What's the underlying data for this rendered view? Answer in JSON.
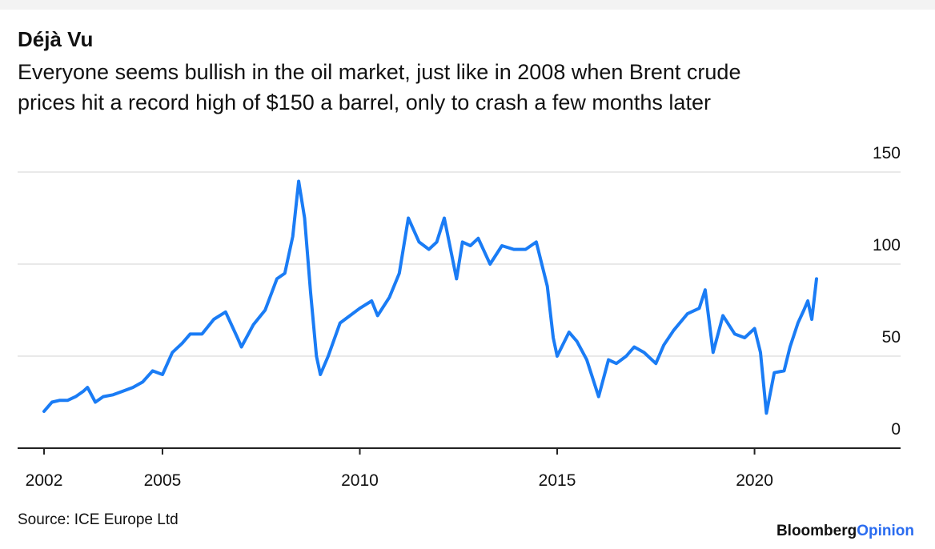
{
  "chart_data": {
    "type": "line",
    "title": "Déjà Vu",
    "subtitle": [
      "Everyone seems bullish in the oil market, just like in 2008 when Brent crude",
      "prices hit a record high of $150 a barrel, only to crash a few months later"
    ],
    "source": "Source: ICE Europe Ltd",
    "brand": [
      "Bloomberg",
      "Opinion"
    ],
    "x": [
      2002.0,
      2002.2,
      2002.4,
      2002.6,
      2002.8,
      2003.0,
      2003.1,
      2003.3,
      2003.5,
      2003.75,
      2004.0,
      2004.25,
      2004.5,
      2004.75,
      2005.0,
      2005.25,
      2005.5,
      2005.7,
      2006.0,
      2006.3,
      2006.6,
      2006.9,
      2007.0,
      2007.3,
      2007.6,
      2007.9,
      2008.1,
      2008.3,
      2008.45,
      2008.6,
      2008.75,
      2008.9,
      2009.0,
      2009.2,
      2009.5,
      2009.75,
      2010.0,
      2010.3,
      2010.45,
      2010.75,
      2011.0,
      2011.23,
      2011.5,
      2011.75,
      2011.95,
      2012.14,
      2012.45,
      2012.6,
      2012.8,
      2013.0,
      2013.3,
      2013.6,
      2013.9,
      2014.2,
      2014.47,
      2014.75,
      2014.9,
      2015.0,
      2015.3,
      2015.5,
      2015.75,
      2016.05,
      2016.3,
      2016.5,
      2016.75,
      2016.95,
      2017.2,
      2017.5,
      2017.7,
      2017.95,
      2018.3,
      2018.6,
      2018.75,
      2018.95,
      2019.2,
      2019.5,
      2019.75,
      2020.0,
      2020.15,
      2020.3,
      2020.5,
      2020.75,
      2020.9,
      2021.1,
      2021.25,
      2021.35,
      2021.45,
      2021.57
    ],
    "series": [
      {
        "name": "Brent crude",
        "color": "#1a7cf5",
        "values": [
          20,
          25,
          26,
          26,
          28,
          31,
          33,
          25,
          28,
          29,
          31,
          33,
          36,
          42,
          40,
          52,
          57,
          62,
          62,
          70,
          74,
          60,
          55,
          67,
          75,
          92,
          95,
          115,
          145,
          125,
          85,
          50,
          40,
          50,
          68,
          72,
          76,
          80,
          72,
          82,
          95,
          125,
          112,
          108,
          112,
          125,
          92,
          112,
          110,
          114,
          100,
          110,
          108,
          108,
          112,
          88,
          60,
          50,
          63,
          58,
          48,
          28,
          48,
          46,
          50,
          55,
          52,
          46,
          56,
          64,
          73,
          76,
          86,
          52,
          72,
          62,
          60,
          65,
          52,
          19,
          41,
          42,
          55,
          68,
          75,
          80,
          70,
          92
        ]
      }
    ],
    "xlim": [
      2001.33,
      2023.7
    ],
    "ylim": [
      0,
      150
    ],
    "xticks": [
      2002,
      2005,
      2010,
      2015,
      2020
    ],
    "yticks": [
      0,
      50,
      100,
      150
    ],
    "grid": true
  }
}
